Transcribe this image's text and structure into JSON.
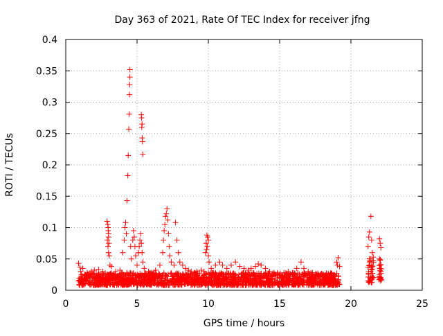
{
  "chart_data": {
    "type": "scatter",
    "title": "Day 363 of 2021, Rate Of TEC Index for receiver jfng",
    "xlabel": "GPS time / hours",
    "ylabel": "ROTI / TECUs",
    "xlim": [
      0,
      25
    ],
    "ylim": [
      0,
      0.4
    ],
    "xticks": [
      0,
      5,
      10,
      15,
      20,
      25
    ],
    "xtick_labels": [
      "0",
      "5",
      "10",
      "15",
      "20",
      "25"
    ],
    "yticks": [
      0,
      0.05,
      0.1,
      0.15,
      0.2,
      0.25,
      0.3,
      0.35,
      0.4
    ],
    "ytick_labels": [
      "0",
      "0.05",
      "0.1",
      "0.15",
      "0.2",
      "0.25",
      "0.3",
      "0.35",
      "0.4"
    ],
    "grid": true,
    "marker": "+",
    "marker_color": "#ff0000",
    "series": [
      {
        "name": "ROTI",
        "points": [
          [
            0.9,
            0.043
          ],
          [
            1.0,
            0.037
          ],
          [
            1.05,
            0.03
          ],
          [
            1.2,
            0.035
          ],
          [
            1.1,
            0.025
          ],
          [
            1.5,
            0.028
          ],
          [
            1.8,
            0.03
          ],
          [
            2.0,
            0.032
          ],
          [
            2.3,
            0.033
          ],
          [
            2.6,
            0.03
          ],
          [
            2.9,
            0.11
          ],
          [
            2.95,
            0.105
          ],
          [
            2.97,
            0.1
          ],
          [
            2.98,
            0.095
          ],
          [
            3.0,
            0.09
          ],
          [
            3.0,
            0.085
          ],
          [
            2.92,
            0.08
          ],
          [
            3.02,
            0.075
          ],
          [
            2.96,
            0.07
          ],
          [
            3.0,
            0.06
          ],
          [
            3.05,
            0.055
          ],
          [
            3.1,
            0.04
          ],
          [
            3.2,
            0.038
          ],
          [
            3.5,
            0.03
          ],
          [
            3.8,
            0.032
          ],
          [
            4.0,
            0.06
          ],
          [
            4.1,
            0.08
          ],
          [
            4.15,
            0.1
          ],
          [
            4.2,
            0.108
          ],
          [
            4.25,
            0.09
          ],
          [
            4.3,
            0.143
          ],
          [
            4.35,
            0.183
          ],
          [
            4.38,
            0.215
          ],
          [
            4.42,
            0.257
          ],
          [
            4.45,
            0.281
          ],
          [
            4.47,
            0.312
          ],
          [
            4.48,
            0.328
          ],
          [
            4.5,
            0.34
          ],
          [
            4.5,
            0.352
          ],
          [
            4.55,
            0.07
          ],
          [
            4.6,
            0.05
          ],
          [
            4.7,
            0.08
          ],
          [
            4.75,
            0.095
          ],
          [
            4.8,
            0.085
          ],
          [
            4.85,
            0.07
          ],
          [
            4.9,
            0.055
          ],
          [
            5.0,
            0.04
          ],
          [
            5.1,
            0.06
          ],
          [
            5.15,
            0.07
          ],
          [
            5.2,
            0.08
          ],
          [
            5.25,
            0.09
          ],
          [
            5.3,
            0.075
          ],
          [
            5.35,
            0.06
          ],
          [
            5.4,
            0.045
          ],
          [
            5.3,
            0.28
          ],
          [
            5.32,
            0.275
          ],
          [
            5.35,
            0.265
          ],
          [
            5.33,
            0.26
          ],
          [
            5.36,
            0.243
          ],
          [
            5.38,
            0.237
          ],
          [
            5.4,
            0.217
          ],
          [
            5.5,
            0.035
          ],
          [
            5.8,
            0.03
          ],
          [
            6.0,
            0.028
          ],
          [
            6.3,
            0.032
          ],
          [
            6.6,
            0.04
          ],
          [
            6.8,
            0.06
          ],
          [
            6.85,
            0.08
          ],
          [
            6.9,
            0.095
          ],
          [
            6.95,
            0.105
          ],
          [
            7.0,
            0.118
          ],
          [
            7.05,
            0.122
          ],
          [
            7.1,
            0.13
          ],
          [
            7.15,
            0.112
          ],
          [
            7.2,
            0.09
          ],
          [
            7.25,
            0.07
          ],
          [
            7.3,
            0.055
          ],
          [
            7.4,
            0.045
          ],
          [
            7.6,
            0.04
          ],
          [
            7.7,
            0.108
          ],
          [
            7.8,
            0.08
          ],
          [
            7.9,
            0.06
          ],
          [
            8.0,
            0.045
          ],
          [
            8.2,
            0.04
          ],
          [
            8.4,
            0.035
          ],
          [
            8.6,
            0.032
          ],
          [
            8.8,
            0.03
          ],
          [
            9.0,
            0.028
          ],
          [
            9.2,
            0.03
          ],
          [
            9.5,
            0.032
          ],
          [
            9.7,
            0.03
          ],
          [
            9.8,
            0.06
          ],
          [
            9.85,
            0.075
          ],
          [
            9.9,
            0.088
          ],
          [
            9.95,
            0.085
          ],
          [
            10.0,
            0.08
          ],
          [
            9.92,
            0.07
          ],
          [
            9.88,
            0.065
          ],
          [
            10.0,
            0.055
          ],
          [
            10.05,
            0.045
          ],
          [
            10.2,
            0.035
          ],
          [
            10.5,
            0.04
          ],
          [
            10.8,
            0.045
          ],
          [
            11.0,
            0.04
          ],
          [
            11.3,
            0.035
          ],
          [
            11.6,
            0.04
          ],
          [
            11.9,
            0.045
          ],
          [
            12.2,
            0.038
          ],
          [
            12.5,
            0.035
          ],
          [
            12.8,
            0.032
          ],
          [
            13.0,
            0.035
          ],
          [
            13.3,
            0.038
          ],
          [
            13.5,
            0.042
          ],
          [
            13.7,
            0.04
          ],
          [
            14.0,
            0.035
          ],
          [
            14.3,
            0.03
          ],
          [
            14.6,
            0.028
          ],
          [
            15.0,
            0.025
          ],
          [
            15.3,
            0.028
          ],
          [
            15.6,
            0.03
          ],
          [
            15.9,
            0.028
          ],
          [
            16.2,
            0.035
          ],
          [
            16.5,
            0.045
          ],
          [
            16.7,
            0.035
          ],
          [
            17.0,
            0.03
          ],
          [
            17.3,
            0.028
          ],
          [
            17.6,
            0.025
          ],
          [
            17.9,
            0.025
          ],
          [
            18.2,
            0.024
          ],
          [
            18.5,
            0.024
          ],
          [
            18.8,
            0.025
          ],
          [
            19.0,
            0.045
          ],
          [
            19.05,
            0.04
          ],
          [
            19.1,
            0.052
          ],
          [
            19.2,
            0.038
          ],
          [
            21.2,
            0.07
          ],
          [
            21.25,
            0.085
          ],
          [
            21.3,
            0.093
          ],
          [
            21.35,
            0.05
          ],
          [
            21.4,
            0.118
          ],
          [
            21.45,
            0.08
          ],
          [
            21.5,
            0.06
          ],
          [
            21.3,
            0.04
          ],
          [
            21.35,
            0.02
          ],
          [
            21.2,
            0.015
          ],
          [
            21.4,
            0.03
          ],
          [
            22.0,
            0.082
          ],
          [
            22.05,
            0.075
          ],
          [
            22.1,
            0.068
          ],
          [
            22.0,
            0.05
          ],
          [
            22.05,
            0.04
          ],
          [
            22.1,
            0.03
          ],
          [
            22.0,
            0.025
          ],
          [
            22.08,
            0.015
          ],
          [
            22.02,
            0.035
          ]
        ],
        "dense_band": [
          {
            "x_start": 0.9,
            "x_end": 19.2,
            "y_min": 0.008,
            "y_max": 0.028
          },
          {
            "x_start": 21.2,
            "x_end": 21.6,
            "y_min": 0.012,
            "y_max": 0.055
          },
          {
            "x_start": 21.95,
            "x_end": 22.15,
            "y_min": 0.015,
            "y_max": 0.05
          }
        ]
      }
    ]
  }
}
